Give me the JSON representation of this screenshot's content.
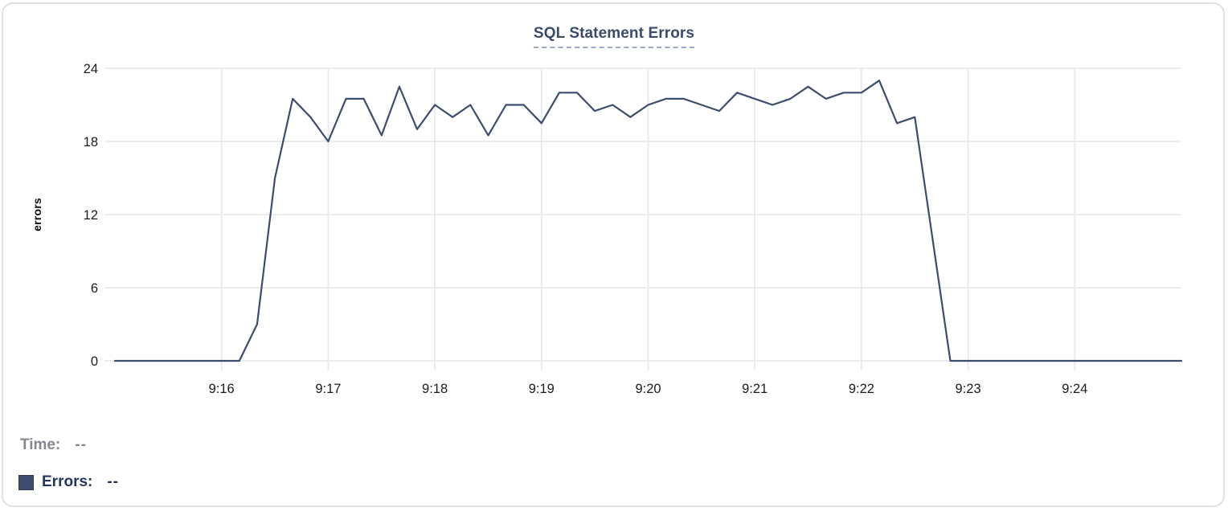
{
  "chart_data": {
    "type": "line",
    "title": "SQL Statement Errors",
    "xlabel": "",
    "ylabel": "errors",
    "ylim": [
      0,
      24
    ],
    "yticks": [
      0,
      6,
      12,
      18,
      24
    ],
    "x_range": [
      "9:15:00",
      "9:25:00"
    ],
    "xticks": [
      "9:16",
      "9:17",
      "9:18",
      "9:19",
      "9:20",
      "9:21",
      "9:22",
      "9:23",
      "9:24"
    ],
    "grid": true,
    "line_color": "#3e4d6d",
    "gridline_color": "#e9eaec",
    "tick_label_color": "#1b1c1f",
    "series": [
      {
        "name": "Errors",
        "times": [
          "9:15:00",
          "9:15:10",
          "9:15:20",
          "9:15:30",
          "9:15:40",
          "9:15:50",
          "9:16:00",
          "9:16:10",
          "9:16:20",
          "9:16:30",
          "9:16:40",
          "9:16:50",
          "9:17:00",
          "9:17:10",
          "9:17:20",
          "9:17:30",
          "9:17:40",
          "9:17:50",
          "9:18:00",
          "9:18:10",
          "9:18:20",
          "9:18:30",
          "9:18:40",
          "9:18:50",
          "9:19:00",
          "9:19:10",
          "9:19:20",
          "9:19:30",
          "9:19:40",
          "9:19:50",
          "9:20:00",
          "9:20:10",
          "9:20:20",
          "9:20:30",
          "9:20:40",
          "9:20:50",
          "9:21:00",
          "9:21:10",
          "9:21:20",
          "9:21:30",
          "9:21:40",
          "9:21:50",
          "9:22:00",
          "9:22:10",
          "9:22:20",
          "9:22:30",
          "9:22:40",
          "9:22:50",
          "9:23:00",
          "9:23:10",
          "9:23:20",
          "9:23:30",
          "9:23:40",
          "9:23:50",
          "9:24:00",
          "9:24:10",
          "9:24:20",
          "9:24:30",
          "9:24:40",
          "9:24:50",
          "9:25:00"
        ],
        "values": [
          0,
          0,
          0,
          0,
          0,
          0,
          0,
          0,
          3,
          15,
          21.5,
          20,
          18,
          21.5,
          21.5,
          18.5,
          22.5,
          19,
          21,
          20,
          21,
          18.5,
          21,
          21,
          19.5,
          22,
          22,
          20.5,
          21,
          20,
          21,
          21.5,
          21.5,
          21,
          20.5,
          22,
          21.5,
          21,
          21.5,
          22.5,
          21.5,
          22,
          22,
          23,
          19.5,
          20,
          10,
          0,
          0,
          0,
          0,
          0,
          0,
          0,
          0,
          0,
          0,
          0,
          0,
          0,
          0
        ]
      }
    ]
  },
  "tooltip_legend": {
    "time_label": "Time:",
    "time_value": "--",
    "errors_label": "Errors:",
    "errors_value": "--",
    "swatch_color": "#3e4d6b"
  }
}
